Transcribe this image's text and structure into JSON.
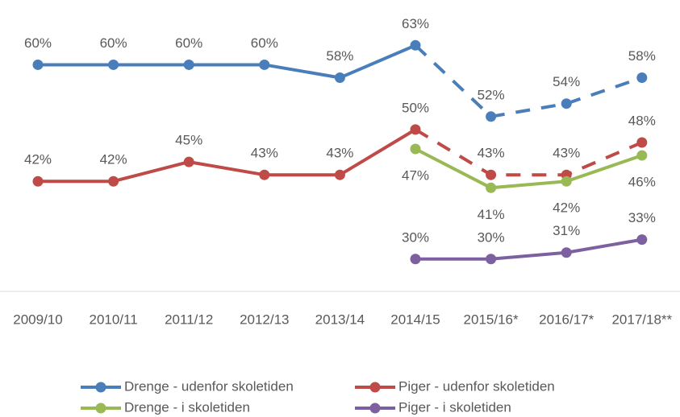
{
  "chart_data": {
    "type": "line",
    "categories": [
      "2009/10",
      "2010/11",
      "2011/12",
      "2012/13",
      "2013/14",
      "2014/15",
      "2015/16*",
      "2016/17*",
      "2017/18**"
    ],
    "ylim": [
      25,
      70
    ],
    "series": [
      {
        "name": "Drenge - udenfor skoletiden",
        "color": "#4a7ebb",
        "values": [
          60,
          60,
          60,
          60,
          58,
          63,
          52,
          54,
          58
        ],
        "value_labels": [
          "60%",
          "60%",
          "60%",
          "60%",
          "58%",
          "63%",
          "52%",
          "54%",
          "58%"
        ],
        "label_position": "above",
        "dashed_from": 5
      },
      {
        "name": "Piger - udenfor skoletiden",
        "color": "#be4b48",
        "values": [
          42,
          42,
          45,
          43,
          43,
          50,
          43,
          43,
          48
        ],
        "value_labels": [
          "42%",
          "42%",
          "45%",
          "43%",
          "43%",
          "50%",
          "43%",
          "43%",
          "48%"
        ],
        "label_position": "above",
        "dashed_from": 5
      },
      {
        "name": "Drenge - i skoletiden",
        "color": "#98b954",
        "values": [
          null,
          null,
          null,
          null,
          null,
          47,
          41,
          42,
          46
        ],
        "value_labels": [
          null,
          null,
          null,
          null,
          null,
          "47%",
          "41%",
          "42%",
          "46%"
        ],
        "label_position": "below"
      },
      {
        "name": "Piger - i skoletiden",
        "color": "#7d60a0",
        "values": [
          null,
          null,
          null,
          null,
          null,
          30,
          30,
          31,
          33
        ],
        "value_labels": [
          null,
          null,
          null,
          null,
          null,
          "30%",
          "30%",
          "31%",
          "33%"
        ],
        "label_position": "above"
      }
    ]
  }
}
